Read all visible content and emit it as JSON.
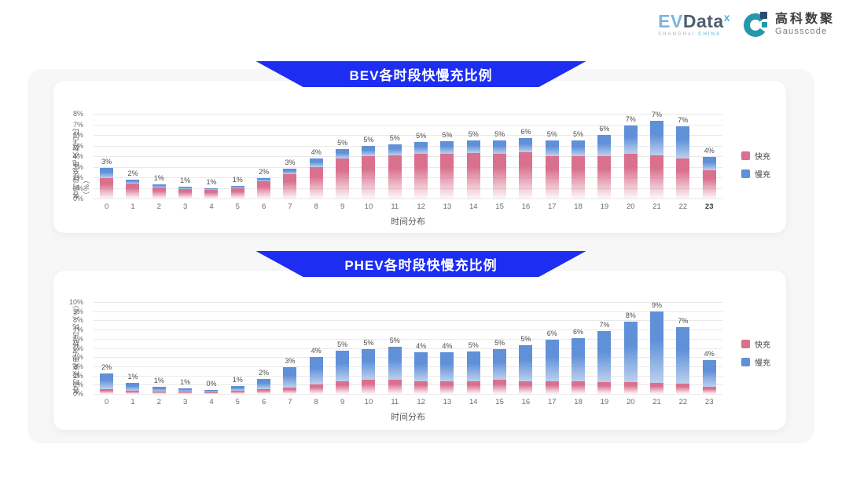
{
  "header": {
    "evdata": {
      "ev": "EV",
      "data": "Data",
      "sup": "x",
      "tagline_left": "SHANGHAI ",
      "tagline_right": "CHINA"
    },
    "gausscode": {
      "name_cn": "高科数聚",
      "name_en": "Gausscode"
    }
  },
  "colors": {
    "banner": "#1d2df2",
    "grid": "#e9e9ea",
    "fast": "#d9708e",
    "slow": "#5f90d8",
    "fast_fade": "rgba(217,112,142,0.06)",
    "slow_fade": "#bdd0ee"
  },
  "chart_data": [
    {
      "type": "bar",
      "stacked": true,
      "title": "BEV各时段快慢充比例",
      "xlabel": "时间分布",
      "ylabel": "各时段充电次数占比（%）",
      "ylim": [
        0,
        8
      ],
      "y_tick_step": 1,
      "grid": true,
      "legend_position": "right",
      "last_tick_bold": true,
      "categories": [
        0,
        1,
        2,
        3,
        4,
        5,
        6,
        7,
        8,
        9,
        10,
        11,
        12,
        13,
        14,
        15,
        16,
        17,
        18,
        19,
        20,
        21,
        22,
        23
      ],
      "series": [
        {
          "name": "快充",
          "color": "#d9708e",
          "fade": "rgba(217,112,142,0.06)",
          "values": [
            1.9,
            1.4,
            1.05,
            0.9,
            0.85,
            1.0,
            1.6,
            2.3,
            3.0,
            3.8,
            4.0,
            4.1,
            4.2,
            4.2,
            4.3,
            4.2,
            4.4,
            4.0,
            4.0,
            4.0,
            4.2,
            4.1,
            3.8,
            2.7
          ]
        },
        {
          "name": "慢充",
          "color": "#5f90d8",
          "fade": "#bdd0ee",
          "values": [
            1.0,
            0.4,
            0.25,
            0.2,
            0.1,
            0.15,
            0.3,
            0.5,
            0.8,
            0.9,
            1.0,
            1.0,
            1.1,
            1.2,
            1.2,
            1.3,
            1.3,
            1.5,
            1.5,
            2.0,
            2.7,
            3.2,
            3.0,
            1.2
          ]
        }
      ],
      "bar_labels": [
        "3%",
        "2%",
        "1%",
        "1%",
        "1%",
        "1%",
        "2%",
        "3%",
        "4%",
        "5%",
        "5%",
        "5%",
        "5%",
        "5%",
        "5%",
        "5%",
        "6%",
        "5%",
        "5%",
        "6%",
        "7%",
        "7%",
        "7%",
        "4%"
      ]
    },
    {
      "type": "bar",
      "stacked": true,
      "title": "PHEV各时段快慢充比例",
      "xlabel": "时间分布",
      "ylabel": "各时段充电次数占比（%）",
      "ylim": [
        0,
        10
      ],
      "y_tick_step": 1,
      "grid": true,
      "legend_position": "right",
      "last_tick_bold": false,
      "categories": [
        0,
        1,
        2,
        3,
        4,
        5,
        6,
        7,
        8,
        9,
        10,
        11,
        12,
        13,
        14,
        15,
        16,
        17,
        18,
        19,
        20,
        21,
        22,
        23
      ],
      "series": [
        {
          "name": "快充",
          "color": "#d9708e",
          "fade": "rgba(217,112,142,0.06)",
          "values": [
            0.5,
            0.35,
            0.3,
            0.3,
            0.2,
            0.35,
            0.5,
            0.7,
            1.0,
            1.4,
            1.5,
            1.5,
            1.4,
            1.4,
            1.4,
            1.5,
            1.4,
            1.4,
            1.4,
            1.3,
            1.3,
            1.2,
            1.1,
            0.8
          ]
        },
        {
          "name": "慢充",
          "color": "#5f90d8",
          "fade": "#bdd0ee",
          "values": [
            1.7,
            0.85,
            0.5,
            0.3,
            0.25,
            0.5,
            1.1,
            2.2,
            3.0,
            3.3,
            3.4,
            3.6,
            3.1,
            3.1,
            3.2,
            3.4,
            3.9,
            4.5,
            4.7,
            5.5,
            6.6,
            7.8,
            6.2,
            2.9
          ]
        }
      ],
      "bar_labels": [
        "2%",
        "1%",
        "1%",
        "1%",
        "0%",
        "1%",
        "2%",
        "3%",
        "4%",
        "5%",
        "5%",
        "5%",
        "4%",
        "4%",
        "5%",
        "5%",
        "5%",
        "6%",
        "6%",
        "7%",
        "8%",
        "9%",
        "7%",
        "4%"
      ]
    }
  ]
}
